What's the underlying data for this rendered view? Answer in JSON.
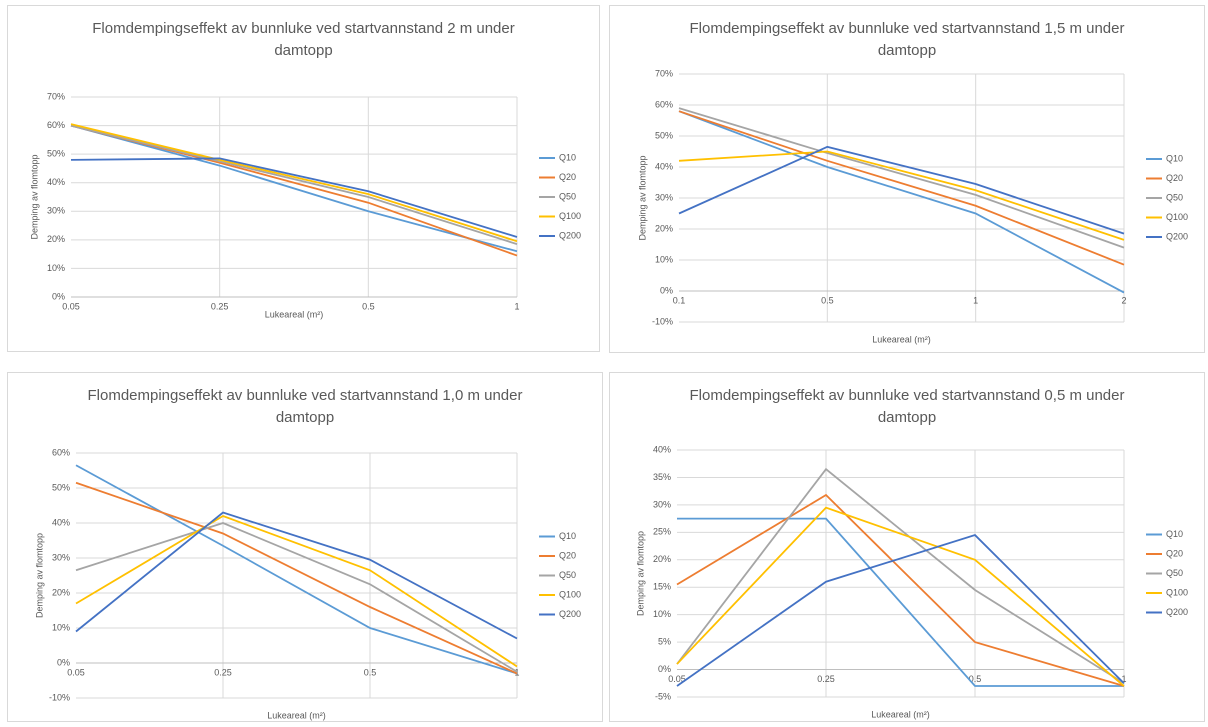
{
  "chart_data": [
    {
      "type": "line",
      "title": "Flomdempingseffekt av bunnluke ved startvannstand 2 m under damtopp",
      "x_label": "Lukeareal (m²)",
      "y_label": "Demping av flomtopp",
      "categories": [
        "0.05",
        "0.25",
        "0.5",
        "1"
      ],
      "series": [
        {
          "name": "Q10",
          "color": "#5b9bd5",
          "values": [
            60,
            46,
            30,
            16
          ]
        },
        {
          "name": "Q20",
          "color": "#ed7d31",
          "values": [
            60,
            47,
            33,
            14.5
          ]
        },
        {
          "name": "Q50",
          "color": "#a5a5a5",
          "values": [
            60,
            47.5,
            35,
            18.5
          ]
        },
        {
          "name": "Q100",
          "color": "#ffc000",
          "values": [
            60.5,
            48,
            36,
            19.5
          ]
        },
        {
          "name": "Q200",
          "color": "#4472c4",
          "values": [
            48,
            48.5,
            37,
            21
          ]
        }
      ],
      "ylim": [
        0,
        70
      ],
      "yticks": [
        {
          "value": 0,
          "label": "0%"
        },
        {
          "value": 10,
          "label": "10%"
        },
        {
          "value": 20,
          "label": "20%"
        },
        {
          "value": 30,
          "label": "30%"
        },
        {
          "value": 40,
          "label": "40%"
        },
        {
          "value": 50,
          "label": "50%"
        },
        {
          "value": 60,
          "label": "60%"
        },
        {
          "value": 70,
          "label": "70%"
        }
      ],
      "grid": true,
      "legend": "right"
    },
    {
      "type": "line",
      "title": "Flomdempingseffekt av bunnluke ved startvannstand 1,5 m under damtopp",
      "x_label": "Lukeareal (m²)",
      "y_label": "Demping av flomtopp",
      "categories": [
        "0.1",
        "0.5",
        "1",
        "2"
      ],
      "series": [
        {
          "name": "Q10",
          "color": "#5b9bd5",
          "values": [
            58,
            40,
            25,
            -0.5
          ]
        },
        {
          "name": "Q20",
          "color": "#ed7d31",
          "values": [
            58,
            42,
            27.5,
            8.5
          ]
        },
        {
          "name": "Q50",
          "color": "#a5a5a5",
          "values": [
            59,
            44.5,
            31,
            14
          ]
        },
        {
          "name": "Q100",
          "color": "#ffc000",
          "values": [
            42,
            45,
            32.5,
            16.5
          ]
        },
        {
          "name": "Q200",
          "color": "#4472c4",
          "values": [
            25,
            46.5,
            34.5,
            18.5
          ]
        }
      ],
      "ylim": [
        -10,
        70
      ],
      "yticks": [
        {
          "value": -10,
          "label": "-10%"
        },
        {
          "value": 0,
          "label": "0%"
        },
        {
          "value": 10,
          "label": "10%"
        },
        {
          "value": 20,
          "label": "20%"
        },
        {
          "value": 30,
          "label": "30%"
        },
        {
          "value": 40,
          "label": "40%"
        },
        {
          "value": 50,
          "label": "50%"
        },
        {
          "value": 60,
          "label": "60%"
        },
        {
          "value": 70,
          "label": "70%"
        }
      ],
      "grid": true,
      "legend": "right"
    },
    {
      "type": "line",
      "title": "Flomdempingseffekt av bunnluke ved startvannstand 1,0 m under damtopp",
      "x_label": "Lukeareal (m²)",
      "y_label": "Demping av flomtopp",
      "categories": [
        "0.05",
        "0.25",
        "0.5",
        "1"
      ],
      "series": [
        {
          "name": "Q10",
          "color": "#5b9bd5",
          "values": [
            56.5,
            33.5,
            10,
            -3
          ]
        },
        {
          "name": "Q20",
          "color": "#ed7d31",
          "values": [
            51.5,
            37,
            16,
            -3
          ]
        },
        {
          "name": "Q50",
          "color": "#a5a5a5",
          "values": [
            26.5,
            40,
            22.5,
            -2.5
          ]
        },
        {
          "name": "Q100",
          "color": "#ffc000",
          "values": [
            17,
            42,
            26.5,
            -1
          ]
        },
        {
          "name": "Q200",
          "color": "#4472c4",
          "values": [
            9,
            43,
            29.5,
            7
          ]
        }
      ],
      "ylim": [
        -10,
        60
      ],
      "yticks": [
        {
          "value": -10,
          "label": "-10%"
        },
        {
          "value": 0,
          "label": "0%"
        },
        {
          "value": 10,
          "label": "10%"
        },
        {
          "value": 20,
          "label": "20%"
        },
        {
          "value": 30,
          "label": "30%"
        },
        {
          "value": 40,
          "label": "40%"
        },
        {
          "value": 50,
          "label": "50%"
        },
        {
          "value": 60,
          "label": "60%"
        }
      ],
      "grid": true,
      "legend": "right"
    },
    {
      "type": "line",
      "title": "Flomdempingseffekt av bunnluke ved startvannstand 0,5 m under damtopp",
      "x_label": "Lukeareal (m²)",
      "y_label": "Demping av flomtopp",
      "categories": [
        "0.05",
        "0.25",
        "0.5",
        "1"
      ],
      "series": [
        {
          "name": "Q10",
          "color": "#5b9bd5",
          "values": [
            27.5,
            27.5,
            -3,
            -3
          ]
        },
        {
          "name": "Q20",
          "color": "#ed7d31",
          "values": [
            15.5,
            31.8,
            5,
            -3
          ]
        },
        {
          "name": "Q50",
          "color": "#a5a5a5",
          "values": [
            1,
            36.5,
            14.5,
            -2.5
          ]
        },
        {
          "name": "Q100",
          "color": "#ffc000",
          "values": [
            1,
            29.5,
            20,
            -3
          ]
        },
        {
          "name": "Q200",
          "color": "#4472c4",
          "values": [
            -3,
            16,
            24.5,
            -2.5
          ]
        }
      ],
      "ylim": [
        -5,
        40
      ],
      "yticks": [
        {
          "value": -5,
          "label": "-5%"
        },
        {
          "value": 0,
          "label": "0%"
        },
        {
          "value": 5,
          "label": "5%"
        },
        {
          "value": 10,
          "label": "10%"
        },
        {
          "value": 15,
          "label": "15%"
        },
        {
          "value": 20,
          "label": "20%"
        },
        {
          "value": 25,
          "label": "25%"
        },
        {
          "value": 30,
          "label": "30%"
        },
        {
          "value": 35,
          "label": "35%"
        },
        {
          "value": 40,
          "label": "40%"
        }
      ],
      "grid": true,
      "legend": "right"
    }
  ]
}
